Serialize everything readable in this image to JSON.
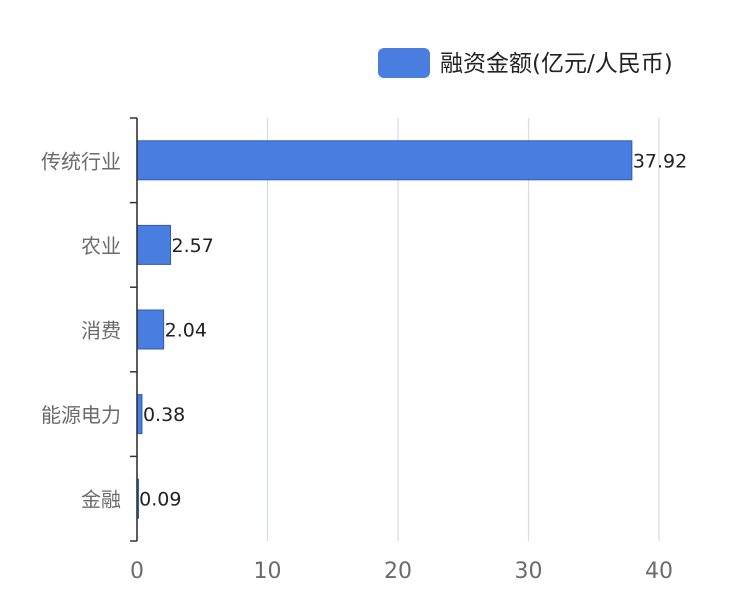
{
  "chart_data": {
    "type": "bar",
    "orientation": "horizontal",
    "categories": [
      "传统行业",
      "农业",
      "消费",
      "能源电力",
      "金融"
    ],
    "series": [
      {
        "name": "融资金额(亿元/人民币)",
        "values": [
          37.92,
          2.57,
          2.04,
          0.38,
          0.09
        ],
        "color": "#4a7de0"
      }
    ],
    "data_labels": [
      "37.92",
      "2.57",
      "2.04",
      "0.38",
      "0.09"
    ],
    "x_ticks": [
      "0",
      "10",
      "20",
      "30",
      "40"
    ],
    "xlim": [
      0,
      40
    ],
    "grid": "vertical",
    "legend_position": "top-right",
    "title": "",
    "xlabel": "",
    "ylabel": ""
  },
  "colors": {
    "bar": "#4a7de0",
    "grid": "#d6dbe6",
    "axis": "#333333",
    "tick_text": "#6b6b6b",
    "label_text": "#222222"
  }
}
